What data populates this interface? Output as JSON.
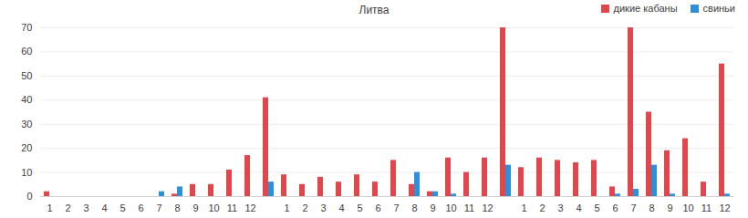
{
  "chart_data": {
    "type": "bar",
    "title": "Литва",
    "categories": [
      "1",
      "2",
      "3",
      "4",
      "5",
      "6",
      "7",
      "8",
      "9",
      "10",
      "11",
      "12",
      null,
      "1",
      "2",
      "3",
      "4",
      "5",
      "6",
      "7",
      "8",
      "9",
      "10",
      "11",
      "12",
      null,
      "1",
      "2",
      "3",
      "4",
      "5",
      "6",
      "7",
      "8",
      "9",
      "10",
      "11",
      "12"
    ],
    "series": [
      {
        "name": "дикие кабаны",
        "color": "#e0474c",
        "values": [
          2,
          0,
          0,
          0,
          0,
          0,
          0,
          1,
          5,
          5,
          11,
          17,
          41,
          9,
          5,
          8,
          6,
          9,
          6,
          15,
          5,
          2,
          16,
          10,
          16,
          70,
          12,
          16,
          15,
          14,
          15,
          4,
          70,
          35,
          19,
          24,
          6,
          55
        ]
      },
      {
        "name": "свиньи",
        "color": "#2f8fd8",
        "values": [
          0,
          0,
          0,
          0,
          0,
          0,
          2,
          4,
          0,
          0,
          0,
          0,
          6,
          0,
          0,
          0,
          0,
          0,
          0,
          0,
          10,
          2,
          1,
          0,
          0,
          13,
          0,
          0,
          0,
          0,
          0,
          1,
          3,
          13,
          1,
          0,
          0,
          1
        ]
      }
    ],
    "ylim": [
      0,
      70
    ],
    "yticks": [
      0,
      10,
      20,
      30,
      40,
      50,
      60,
      70
    ],
    "grid": true,
    "legend": "top-right"
  }
}
